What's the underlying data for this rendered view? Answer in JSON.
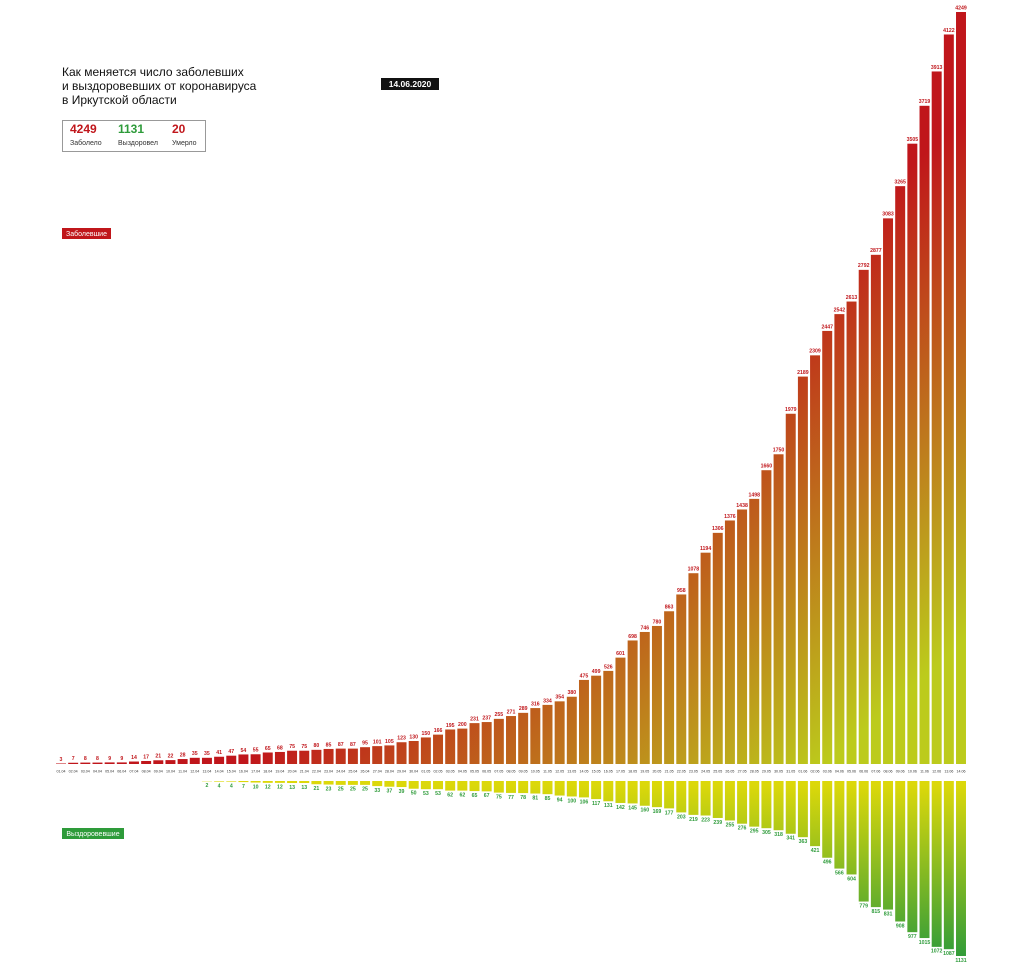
{
  "chart_data": {
    "type": "bar",
    "title": [
      "Как меняется число заболевших",
      "и выздоровевших от коронавируса",
      "в Иркутской области"
    ],
    "date": "14.06.2020",
    "summary": [
      {
        "value": 4249,
        "label": "Заболело",
        "color": "#c0161b"
      },
      {
        "value": 1131,
        "label": "Выздоровел",
        "color": "#2e9b3a"
      },
      {
        "value": 20,
        "label": "Умерло",
        "color": "#c0161b"
      }
    ],
    "categories": [
      "01.04",
      "02.04",
      "03.04",
      "04.04",
      "05.04",
      "06.04",
      "07.04",
      "08.04",
      "09.04",
      "10.04",
      "11.04",
      "12.04",
      "13.04",
      "14.04",
      "15.04",
      "16.04",
      "17.04",
      "18.04",
      "19.04",
      "20.04",
      "21.04",
      "22.04",
      "23.04",
      "24.04",
      "25.04",
      "26.04",
      "27.04",
      "28.04",
      "29.04",
      "30.04",
      "01.05",
      "02.05",
      "03.05",
      "04.05",
      "05.05",
      "06.05",
      "07.05",
      "08.05",
      "09.05",
      "10.05",
      "11.05",
      "12.05",
      "13.05",
      "14.05",
      "15.05",
      "16.05",
      "17.05",
      "18.05",
      "19.05",
      "20.05",
      "21.05",
      "22.05",
      "23.05",
      "24.05",
      "25.05",
      "26.05",
      "27.05",
      "28.05",
      "29.05",
      "30.05",
      "31.05",
      "01.06",
      "02.06",
      "03.06",
      "04.06",
      "05.06",
      "06.06",
      "07.06",
      "08.06",
      "09.06",
      "10.06",
      "11.06",
      "12.06",
      "13.06",
      "14.06"
    ],
    "series": [
      {
        "name": "Заболевшие",
        "color": "#c0161b",
        "values": [
          3,
          7,
          8,
          8,
          9,
          9,
          14,
          17,
          21,
          22,
          28,
          35,
          35,
          41,
          47,
          54,
          55,
          65,
          68,
          75,
          75,
          80,
          85,
          87,
          87,
          95,
          101,
          105,
          123,
          130,
          150,
          166,
          195,
          200,
          231,
          237,
          255,
          271,
          289,
          316,
          334,
          354,
          380,
          475,
          499,
          526,
          601,
          698,
          746,
          780,
          863,
          958,
          1078,
          1194,
          1306,
          1376,
          1438,
          1498,
          1660,
          1750,
          1979,
          2189,
          2309,
          2447,
          2542,
          2613,
          2792,
          2877,
          3083,
          3265,
          3505,
          3719,
          3913,
          4122,
          4249
        ]
      },
      {
        "name": "Выздоровевшие",
        "color": "#2e9b3a",
        "axis": "y2",
        "values": [
          null,
          null,
          null,
          null,
          null,
          null,
          null,
          null,
          null,
          null,
          null,
          null,
          2,
          4,
          4,
          7,
          10,
          12,
          12,
          13,
          13,
          21,
          23,
          25,
          25,
          25,
          33,
          37,
          39,
          50,
          53,
          53,
          62,
          62,
          65,
          67,
          75,
          77,
          78,
          81,
          85,
          94,
          100,
          106,
          117,
          131,
          142,
          145,
          160,
          169,
          177,
          203,
          219,
          223,
          239,
          255,
          276,
          295,
          305,
          318,
          341,
          363,
          421,
          496,
          566,
          604,
          779,
          815,
          831,
          908,
          977,
          1015,
          1072,
          1087,
          1131
        ]
      }
    ],
    "ylim": [
      0,
      4249
    ],
    "y2lim": [
      0,
      1131
    ]
  }
}
